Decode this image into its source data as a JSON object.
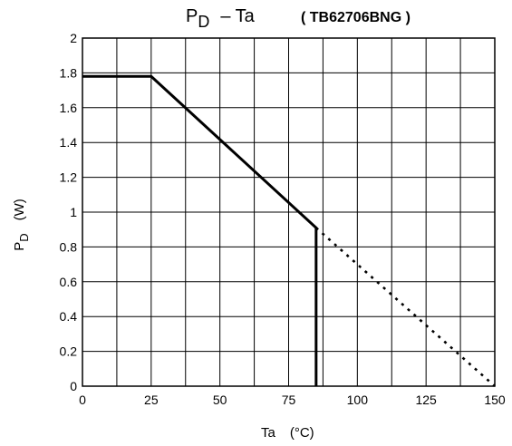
{
  "chart_data": {
    "type": "line",
    "title": "P",
    "title_subscript": "D",
    "title_rest": "– Ta",
    "subtitle": "( TB62706BNG )",
    "xlabel": "Ta",
    "xlabel_unit": "(°C)",
    "ylabel": "P",
    "ylabel_subscript": "D",
    "ylabel_unit": "(W)",
    "xlim": [
      0,
      150
    ],
    "ylim": [
      0,
      2
    ],
    "grid": true,
    "x_ticks": [
      0,
      25,
      50,
      75,
      100,
      125,
      150
    ],
    "x_tick_labels": [
      "0",
      "25",
      "50",
      "75",
      "100",
      "125",
      "150"
    ],
    "y_ticks": [
      0,
      0.2,
      0.4,
      0.6,
      0.8,
      1,
      1.2,
      1.4,
      1.6,
      1.8,
      2
    ],
    "y_tick_labels": [
      "0",
      "0.2",
      "0.4",
      "0.6",
      "0.8",
      "1",
      "1.2",
      "1.4",
      "1.6",
      "1.8",
      "2"
    ],
    "x_minor_step": 12.5,
    "series": [
      {
        "style": "solid",
        "points": [
          [
            0,
            1.78
          ],
          [
            25,
            1.78
          ],
          [
            85,
            0.91
          ],
          [
            85,
            0
          ]
        ]
      },
      {
        "style": "dotted",
        "points": [
          [
            85,
            0.91
          ],
          [
            150,
            0
          ]
        ]
      }
    ]
  }
}
